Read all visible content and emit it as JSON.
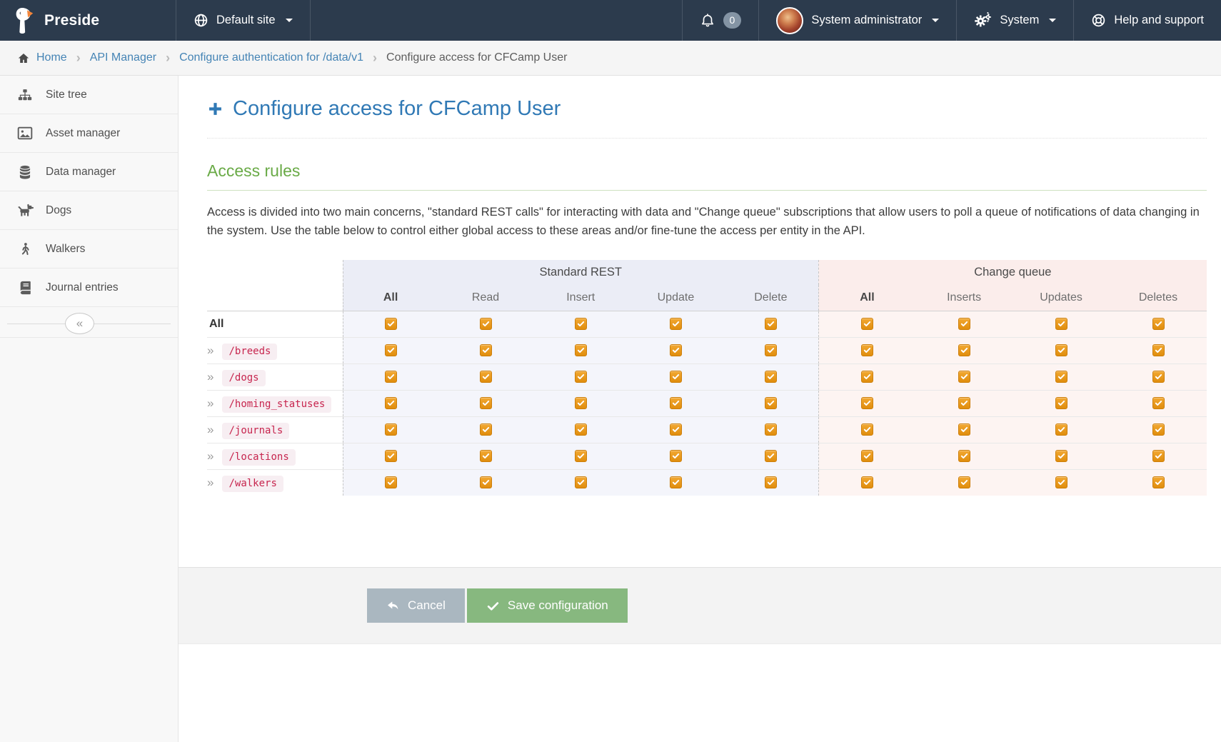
{
  "navbar": {
    "brand": "Preside",
    "site_selector": "Default site",
    "notification_count": "0",
    "user_menu": "System administrator",
    "system_menu": "System",
    "help": "Help and support"
  },
  "breadcrumb": {
    "items": [
      "Home",
      "API Manager",
      "Configure authentication for /data/v1",
      "Configure access for CFCamp User"
    ]
  },
  "sidebar": {
    "items": [
      {
        "label": "Site tree",
        "icon": "sitemap"
      },
      {
        "label": "Asset manager",
        "icon": "image"
      },
      {
        "label": "Data manager",
        "icon": "database"
      },
      {
        "label": "Dogs",
        "icon": "dog"
      },
      {
        "label": "Walkers",
        "icon": "walker"
      },
      {
        "label": "Journal entries",
        "icon": "book"
      }
    ]
  },
  "main": {
    "page_title": "Configure access for CFCamp User",
    "section_heading": "Access rules",
    "description": "Access is divided into two main concerns, \"standard REST calls\" for interacting with data and \"Change queue\" subscriptions that allow users to poll a queue of notifications of data changing in the system. Use the table below to control either global access to these areas and/or fine-tune the access per entity in the API.",
    "table": {
      "groups": [
        {
          "label": "Standard REST",
          "columns": [
            "All",
            "Read",
            "Insert",
            "Update",
            "Delete"
          ],
          "tint": "srest"
        },
        {
          "label": "Change queue",
          "columns": [
            "All",
            "Inserts",
            "Updates",
            "Deletes"
          ],
          "tint": "cqueue"
        }
      ],
      "all_row_label": "All",
      "rows": [
        "/breeds",
        "/dogs",
        "/homing_statuses",
        "/journals",
        "/locations",
        "/walkers"
      ],
      "checkbox_checked": true
    },
    "actions": {
      "cancel": "Cancel",
      "save": "Save configuration"
    }
  },
  "icons": {
    "collapse": "«",
    "row_expand": "»",
    "breadcrumb_separator": "›"
  },
  "colors": {
    "navbar_bg": "#2c3b4d",
    "title_blue": "#3079b5",
    "heading_green": "#69aa46",
    "checkbox_orange": "#e8940f",
    "entity_code_red": "#c7254e",
    "cancel_gray": "#aab7c0",
    "save_green": "#87b87f",
    "standard_rest_tint": "#ebedf6",
    "change_queue_tint": "#fbedeb"
  }
}
